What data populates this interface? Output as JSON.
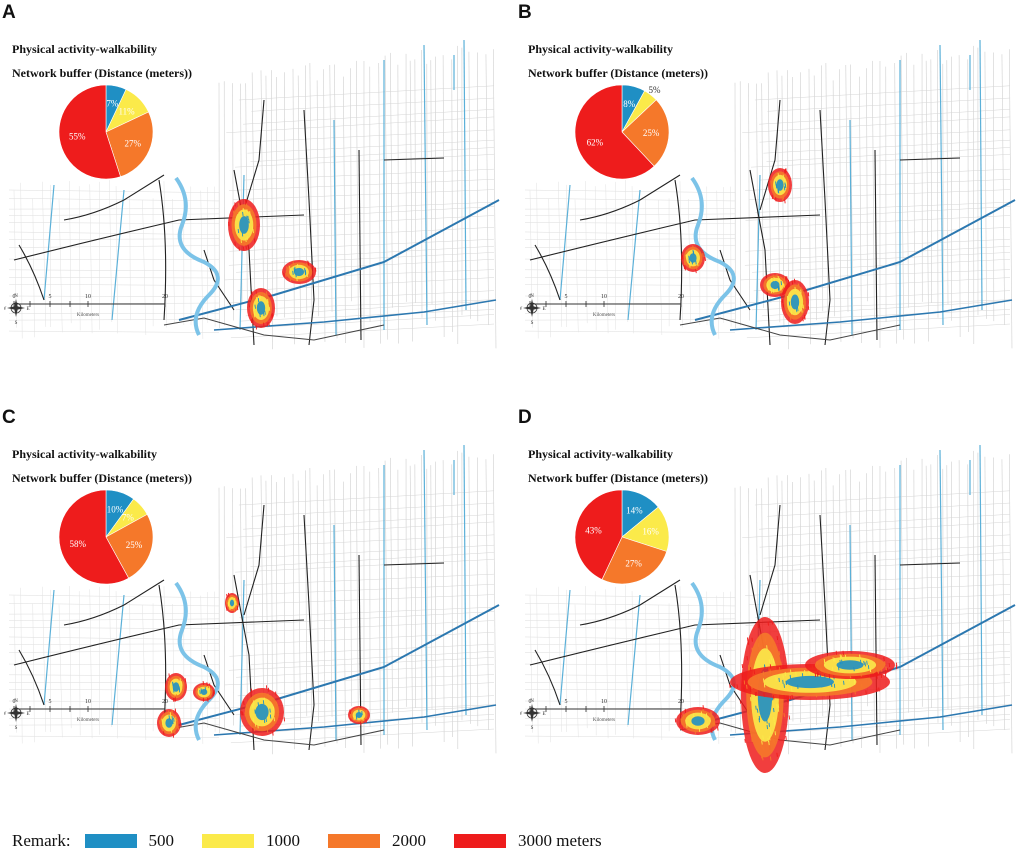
{
  "panels": [
    {
      "letter": "A",
      "title": "Physical activity-walkability",
      "subtitle": "Network buffer (Distance (meters))",
      "pie": [
        {
          "label": "7%",
          "value": 7
        },
        {
          "label": "11%",
          "value": 11
        },
        {
          "label": "27%",
          "value": 27
        },
        {
          "label": "55%",
          "value": 55
        }
      ],
      "scale_ticks": [
        "0",
        "5",
        "10",
        "20"
      ],
      "scale_unit": "Kilometers"
    },
    {
      "letter": "B",
      "title": "Physical activity-walkability",
      "subtitle": "Network buffer (Distance (meters))",
      "pie": [
        {
          "label": "8%",
          "value": 8
        },
        {
          "label": "5%",
          "value": 5
        },
        {
          "label": "25%",
          "value": 25
        },
        {
          "label": "62%",
          "value": 62
        }
      ],
      "scale_ticks": [
        "0",
        "5",
        "10",
        "20"
      ],
      "scale_unit": "Kilometers"
    },
    {
      "letter": "C",
      "title": "Physical activity-walkability",
      "subtitle": "Network buffer (Distance (meters))",
      "pie": [
        {
          "label": "10%",
          "value": 10
        },
        {
          "label": "7%",
          "value": 7
        },
        {
          "label": "25%",
          "value": 25
        },
        {
          "label": "58%",
          "value": 58
        }
      ],
      "scale_ticks": [
        "0",
        "5",
        "10",
        "20"
      ],
      "scale_unit": "Kilometers"
    },
    {
      "letter": "D",
      "title": "Physical activity-walkability",
      "subtitle": "Network buffer (Distance (meters))",
      "pie": [
        {
          "label": "14%",
          "value": 14
        },
        {
          "label": "16%",
          "value": 16
        },
        {
          "label": "27%",
          "value": 27
        },
        {
          "label": "43%",
          "value": 43
        }
      ],
      "scale_ticks": [
        "0",
        "5",
        "10",
        "20"
      ],
      "scale_unit": "Kilometers"
    }
  ],
  "legend": {
    "title": "Remark:",
    "items": [
      {
        "label": "500",
        "color": "#1f8fc4"
      },
      {
        "label": "1000",
        "color": "#fbea4a"
      },
      {
        "label": "2000",
        "color": "#f5782a"
      },
      {
        "label": "3000  meters",
        "color": "#ee1c1c"
      }
    ]
  },
  "compass_letters": {
    "n": "N",
    "s": "S",
    "e": "E",
    "w": "W"
  }
}
